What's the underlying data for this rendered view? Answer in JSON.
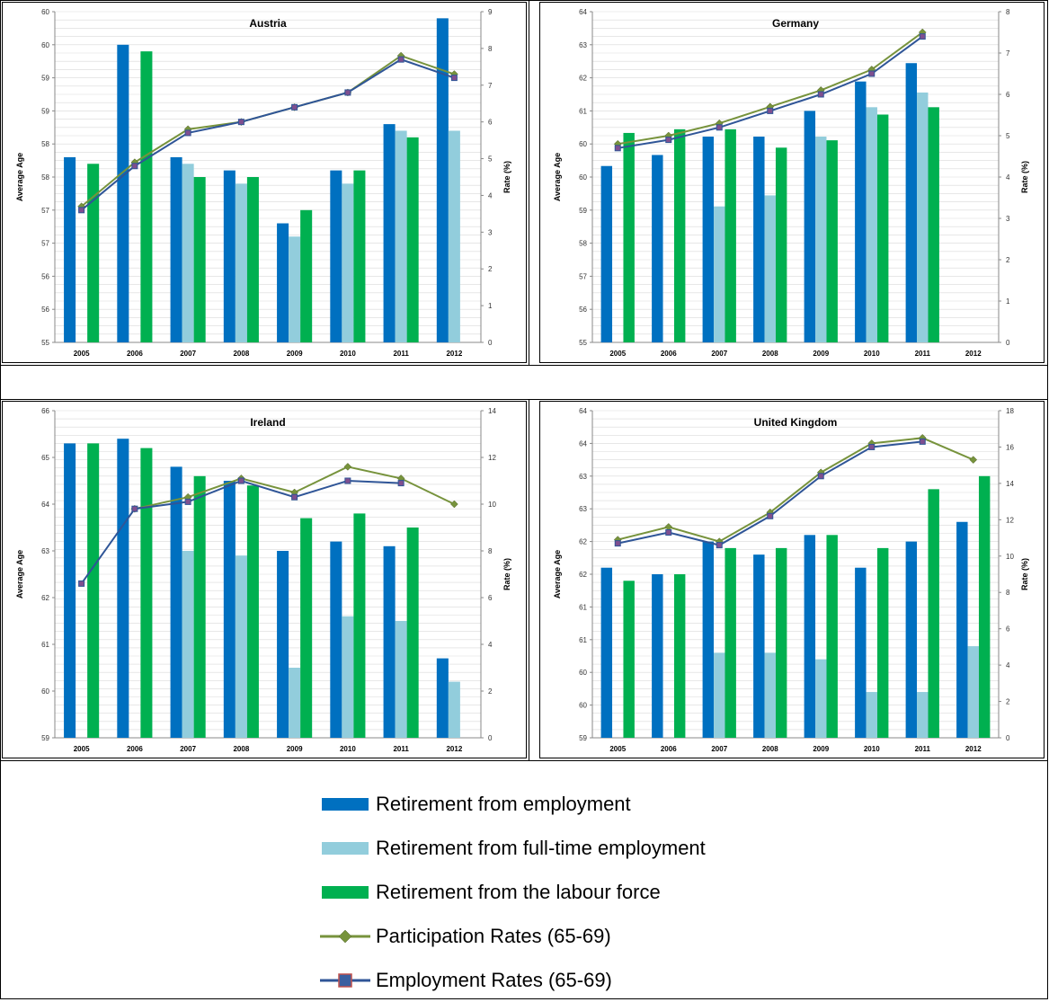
{
  "page": {
    "background": "#ffffff"
  },
  "colors": {
    "employment": "#0070C0",
    "fulltime": "#92CDDC",
    "labour": "#00B050",
    "participation": "#77933C",
    "participation_marker": "#77933C",
    "employment_rate": "#2F5597",
    "employment_rate_marker": "#7F4F8F"
  },
  "legend": {
    "items": [
      {
        "label": "Retirement from employment",
        "kind": "bar",
        "color_key": "employment"
      },
      {
        "label": "Retirement from full-time employment",
        "kind": "bar",
        "color_key": "fulltime"
      },
      {
        "label": "Retirement from the labour force",
        "kind": "bar",
        "color_key": "labour"
      },
      {
        "label": "Participation Rates (65-69)",
        "kind": "line-diamond",
        "color_key": "participation"
      },
      {
        "label": "Employment Rates (65-69)",
        "kind": "line-square",
        "color_key": "employment_rate"
      }
    ]
  },
  "chart_data": [
    {
      "type": "bar+line",
      "title": "Austria",
      "ylabel": "Average Age",
      "y2label": "Rate (%)",
      "categories": [
        "2005",
        "2006",
        "2007",
        "2008",
        "2009",
        "2010",
        "2011",
        "2012"
      ],
      "ylim": [
        55,
        60
      ],
      "yticks": [
        "55",
        "56",
        "56",
        "57",
        "57",
        "58",
        "58",
        "59",
        "59",
        "60",
        "60"
      ],
      "ytick_values": [
        55,
        55.5,
        56,
        56.5,
        57,
        57.5,
        58,
        58.5,
        59,
        59.5,
        60
      ],
      "y2lim": [
        0,
        9
      ],
      "y2ticks": [
        0,
        1,
        2,
        3,
        4,
        5,
        6,
        7,
        8,
        9
      ],
      "bars": [
        {
          "name": "Retirement from employment",
          "color_key": "employment",
          "values": [
            57.8,
            59.5,
            57.8,
            57.6,
            56.8,
            57.6,
            58.3,
            59.9
          ]
        },
        {
          "name": "Retirement from full-time employment",
          "color_key": "fulltime",
          "values": [
            null,
            null,
            57.7,
            57.4,
            56.6,
            57.4,
            58.2,
            58.2
          ]
        },
        {
          "name": "Retirement from the labour force",
          "color_key": "labour",
          "values": [
            57.7,
            59.4,
            57.5,
            57.5,
            57.0,
            57.6,
            58.1,
            null
          ]
        }
      ],
      "lines": [
        {
          "name": "Participation Rates (65-69)",
          "color_key": "participation",
          "marker": "diamond",
          "values": [
            3.7,
            4.9,
            5.8,
            6.0,
            6.4,
            6.8,
            7.8,
            7.3
          ]
        },
        {
          "name": "Employment Rates (65-69)",
          "color_key": "employment_rate",
          "marker": "square",
          "values": [
            3.6,
            4.8,
            5.7,
            6.0,
            6.4,
            6.8,
            7.7,
            7.2
          ]
        }
      ]
    },
    {
      "type": "bar+line",
      "title": "Germany",
      "ylabel": "Average Age",
      "y2label": "Rate (%)",
      "categories": [
        "2005",
        "2006",
        "2007",
        "2008",
        "2009",
        "2010",
        "2011",
        "2012"
      ],
      "ylim": [
        55,
        64
      ],
      "yticks": [
        "55",
        "56",
        "57",
        "58",
        "59",
        "60",
        "60",
        "61",
        "62",
        "63",
        "64"
      ],
      "ytick_values": [
        55,
        55.9,
        56.8,
        57.7,
        58.6,
        59.5,
        60.4,
        61.3,
        62.2,
        63.1,
        64
      ],
      "y2lim": [
        0,
        8
      ],
      "y2ticks": [
        0,
        1,
        2,
        3,
        4,
        5,
        6,
        7,
        8
      ],
      "bars": [
        {
          "name": "Retirement from employment",
          "color_key": "employment",
          "values": [
            59.8,
            60.1,
            60.6,
            60.6,
            61.3,
            62.1,
            62.6,
            null
          ]
        },
        {
          "name": "Retirement from full-time employment",
          "color_key": "fulltime",
          "values": [
            null,
            null,
            58.7,
            59.0,
            60.6,
            61.4,
            61.8,
            null
          ]
        },
        {
          "name": "Retirement from the labour force",
          "color_key": "labour",
          "values": [
            60.7,
            60.8,
            60.8,
            60.3,
            60.5,
            61.2,
            61.4,
            null
          ]
        }
      ],
      "lines": [
        {
          "name": "Participation Rates (65-69)",
          "color_key": "participation",
          "marker": "diamond",
          "values": [
            4.8,
            5.0,
            5.3,
            5.7,
            6.1,
            6.6,
            7.5,
            null
          ]
        },
        {
          "name": "Employment Rates (65-69)",
          "color_key": "employment_rate",
          "marker": "square",
          "values": [
            4.7,
            4.9,
            5.2,
            5.6,
            6.0,
            6.5,
            7.4,
            null
          ]
        }
      ]
    },
    {
      "type": "bar+line",
      "title": "Ireland",
      "ylabel": "Average Age",
      "y2label": "Rate (%)",
      "categories": [
        "2005",
        "2006",
        "2007",
        "2008",
        "2009",
        "2010",
        "2011",
        "2012"
      ],
      "ylim": [
        59,
        66
      ],
      "yticks": [
        "59",
        "60",
        "61",
        "62",
        "63",
        "64",
        "65",
        "66"
      ],
      "ytick_values": [
        59,
        60,
        61,
        62,
        63,
        64,
        65,
        66
      ],
      "y2lim": [
        0,
        14
      ],
      "y2ticks": [
        0,
        2,
        4,
        6,
        8,
        10,
        12,
        14
      ],
      "bars": [
        {
          "name": "Retirement from employment",
          "color_key": "employment",
          "values": [
            65.3,
            65.4,
            64.8,
            64.5,
            63.0,
            63.2,
            63.1,
            60.7
          ]
        },
        {
          "name": "Retirement from full-time employment",
          "color_key": "fulltime",
          "values": [
            null,
            null,
            63.0,
            62.9,
            60.5,
            61.6,
            61.5,
            60.2
          ]
        },
        {
          "name": "Retirement from the labour force",
          "color_key": "labour",
          "values": [
            65.3,
            65.2,
            64.6,
            64.4,
            63.7,
            63.8,
            63.5,
            null
          ]
        }
      ],
      "lines": [
        {
          "name": "Participation Rates (65-69)",
          "color_key": "participation",
          "marker": "diamond",
          "values": [
            null,
            9.8,
            10.3,
            11.1,
            10.5,
            11.6,
            11.1,
            10.0
          ]
        },
        {
          "name": "Employment Rates (65-69)",
          "color_key": "employment_rate",
          "marker": "square",
          "values": [
            6.6,
            9.8,
            10.1,
            11.0,
            10.3,
            11.0,
            10.9,
            null
          ]
        }
      ]
    },
    {
      "type": "bar+line",
      "title": "United Kingdom",
      "ylabel": "Average Age",
      "y2label": "Rate (%)",
      "categories": [
        "2005",
        "2006",
        "2007",
        "2008",
        "2009",
        "2010",
        "2011",
        "2012"
      ],
      "ylim": [
        59,
        64
      ],
      "yticks": [
        "59",
        "60",
        "60",
        "61",
        "61",
        "62",
        "62",
        "63",
        "63",
        "64",
        "64"
      ],
      "ytick_values": [
        59,
        59.5,
        60,
        60.5,
        61,
        61.5,
        62,
        62.5,
        63,
        63.5,
        64
      ],
      "y2lim": [
        0,
        18
      ],
      "y2ticks": [
        0,
        2,
        4,
        6,
        8,
        10,
        12,
        14,
        16,
        18
      ],
      "bars": [
        {
          "name": "Retirement from employment",
          "color_key": "employment",
          "values": [
            61.6,
            61.5,
            62.0,
            61.8,
            62.1,
            61.6,
            62.0,
            62.3
          ]
        },
        {
          "name": "Retirement from full-time employment",
          "color_key": "fulltime",
          "values": [
            null,
            null,
            60.3,
            60.3,
            60.2,
            59.7,
            59.7,
            60.4
          ]
        },
        {
          "name": "Retirement from the labour force",
          "color_key": "labour",
          "values": [
            61.4,
            61.5,
            61.9,
            61.9,
            62.1,
            61.9,
            62.8,
            63.0
          ]
        }
      ],
      "lines": [
        {
          "name": "Participation Rates (65-69)",
          "color_key": "participation",
          "marker": "diamond",
          "values": [
            10.9,
            11.6,
            10.8,
            12.4,
            14.6,
            16.2,
            16.5,
            15.3
          ]
        },
        {
          "name": "Employment Rates (65-69)",
          "color_key": "employment_rate",
          "marker": "square",
          "values": [
            10.7,
            11.3,
            10.6,
            12.2,
            14.4,
            16.0,
            16.3,
            null
          ]
        }
      ]
    }
  ]
}
